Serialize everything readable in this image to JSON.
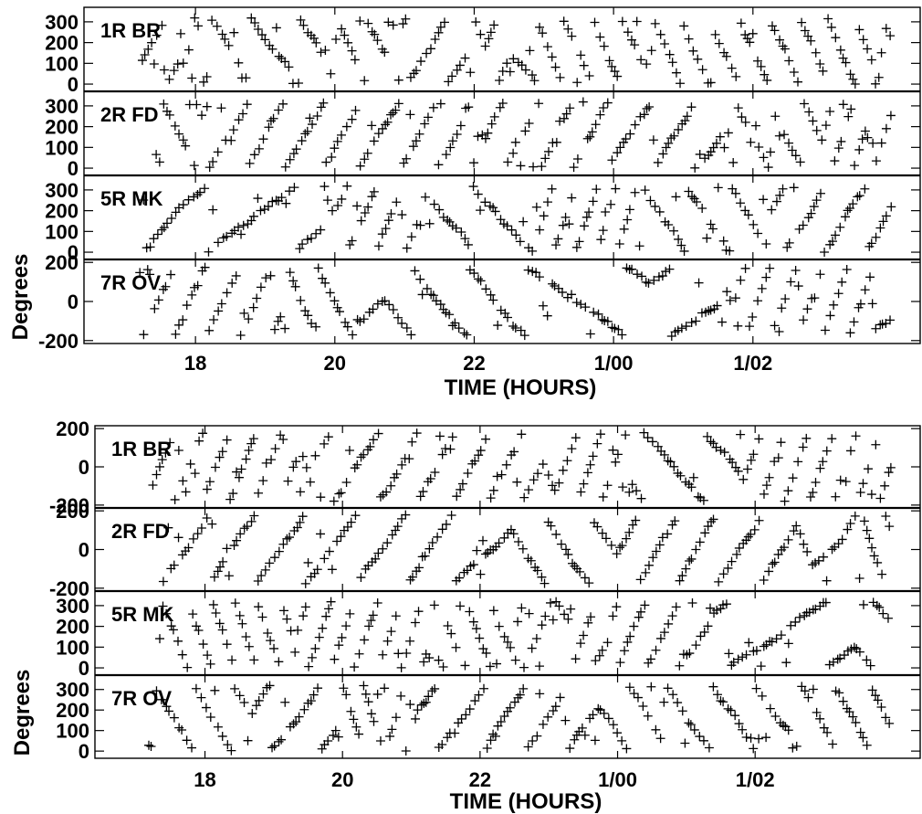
{
  "chart_data": [
    {
      "type": "scatter",
      "xlabel": "TIME (HOURS)",
      "ylabel": "Degrees",
      "x_tick_labels": [
        "18",
        "20",
        "22",
        "1/00",
        "1/02"
      ],
      "xlim": [
        16.4,
        28.4
      ],
      "marker": "+",
      "panels": [
        {
          "label": "1R BR",
          "ylim": [
            -35,
            370
          ],
          "yticks": [
            0,
            100,
            200,
            300
          ]
        },
        {
          "label": "2R FD",
          "ylim": [
            -35,
            370
          ],
          "yticks": [
            0,
            100,
            200,
            300
          ]
        },
        {
          "label": "5R MK",
          "ylim": [
            -35,
            370
          ],
          "yticks": [
            0,
            100,
            200,
            300
          ]
        },
        {
          "label": "7R OV",
          "ylim": [
            -215,
            215
          ],
          "yticks": [
            -200,
            0,
            200
          ]
        }
      ]
    },
    {
      "type": "scatter",
      "xlabel": "TIME (HOURS)",
      "ylabel": "Degrees",
      "x_tick_labels": [
        "18",
        "20",
        "22",
        "1/00",
        "1/02"
      ],
      "xlim": [
        16.4,
        28.4
      ],
      "marker": "+",
      "panels": [
        {
          "label": "1R BR",
          "ylim": [
            -215,
            215
          ],
          "yticks": [
            -200,
            0,
            200
          ]
        },
        {
          "label": "2R FD",
          "ylim": [
            -215,
            215
          ],
          "yticks": [
            -200,
            0,
            200
          ]
        },
        {
          "label": "5R MK",
          "ylim": [
            -35,
            370
          ],
          "yticks": [
            0,
            100,
            200,
            300
          ]
        },
        {
          "label": "7R OV",
          "ylim": [
            -35,
            370
          ],
          "yticks": [
            0,
            100,
            200,
            300
          ]
        }
      ]
    }
  ]
}
